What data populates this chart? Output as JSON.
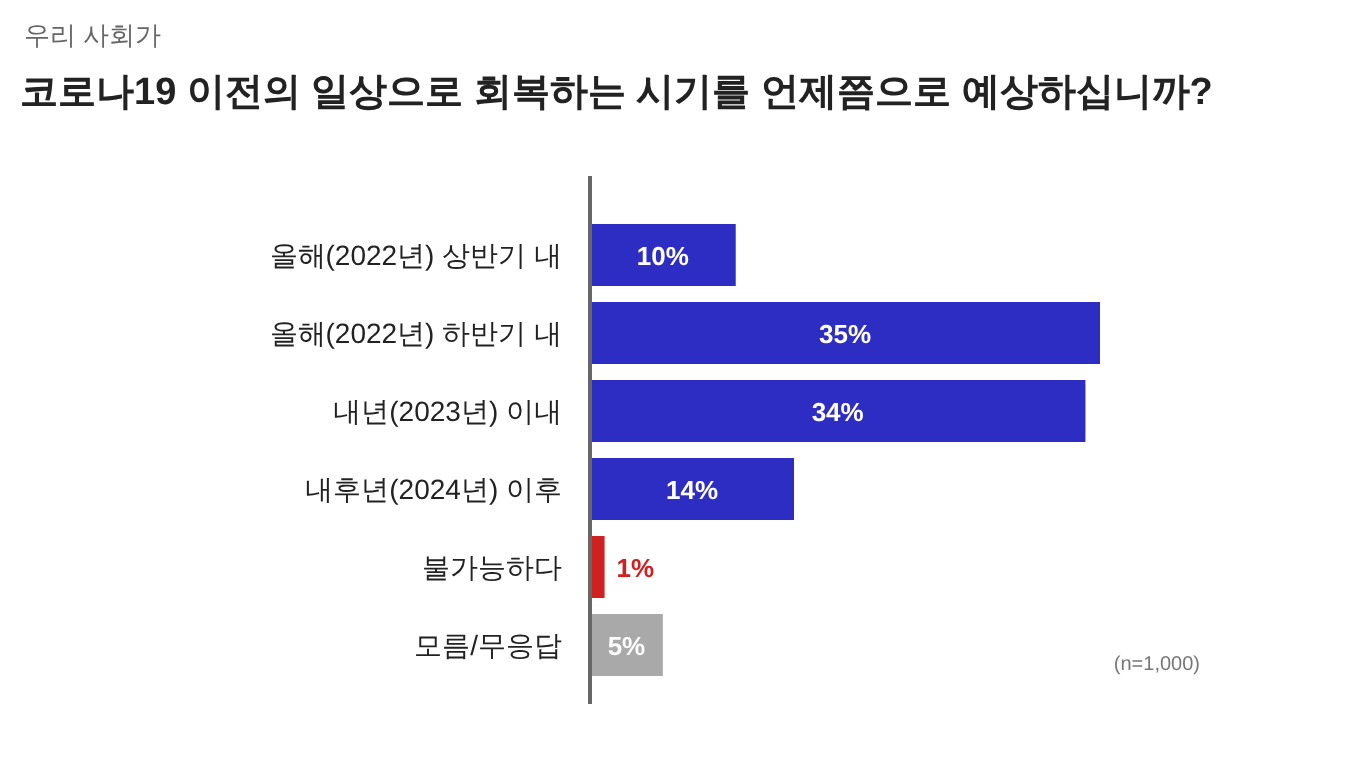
{
  "chart_data": {
    "type": "bar",
    "orientation": "horizontal",
    "subtitle": "우리 사회가",
    "title": "코로나19 이전의 일상으로 회복하는 시기를 언제쯤으로 예상하십니까?",
    "categories": [
      "올해(2022년) 상반기 내",
      "올해(2022년) 하반기 내",
      "내년(2023년) 이내",
      "내후년(2024년) 이후",
      "불가능하다",
      "모름/무응답"
    ],
    "values": [
      10,
      35,
      34,
      14,
      1,
      5
    ],
    "colors": [
      "#2d2dc4",
      "#2d2dc4",
      "#2d2dc4",
      "#2d2dc4",
      "#d0201f",
      "#a9a9a9"
    ],
    "value_labels": [
      "10%",
      "35%",
      "34%",
      "14%",
      "1%",
      "5%"
    ],
    "annotations": [
      "(n=1,000)"
    ]
  }
}
